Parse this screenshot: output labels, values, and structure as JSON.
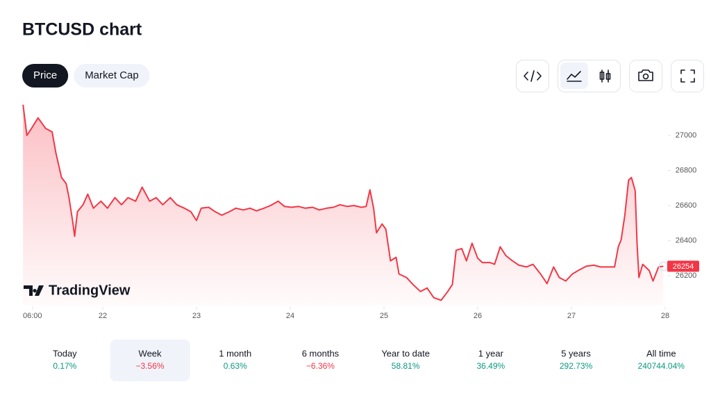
{
  "header": {
    "title": "BTCUSD chart"
  },
  "tabs": [
    "Price",
    "Market Cap"
  ],
  "active_tab": 0,
  "watermark": "TradingView",
  "chart_data": {
    "type": "line",
    "color": "#f23645",
    "x": [
      21.15,
      21.19,
      21.24,
      21.31,
      21.39,
      21.46,
      21.5,
      21.56,
      21.61,
      21.64,
      21.68,
      21.7,
      21.73,
      21.79,
      21.84,
      21.9,
      21.98,
      22.05,
      22.13,
      22.2,
      22.27,
      22.35,
      22.42,
      22.5,
      22.57,
      22.64,
      22.72,
      22.79,
      22.87,
      22.94,
      23.0,
      23.05,
      23.13,
      23.2,
      23.27,
      23.35,
      23.42,
      23.5,
      23.57,
      23.64,
      23.72,
      23.79,
      23.87,
      23.94,
      24.01,
      24.09,
      24.16,
      24.24,
      24.31,
      24.39,
      24.46,
      24.53,
      24.61,
      24.68,
      24.76,
      24.81,
      24.85,
      24.89,
      24.92,
      24.98,
      25.02,
      25.07,
      25.13,
      25.16,
      25.24,
      25.31,
      25.39,
      25.46,
      25.53,
      25.61,
      25.68,
      25.73,
      25.77,
      25.83,
      25.88,
      25.94,
      26.0,
      26.05,
      26.13,
      26.18,
      26.24,
      26.3,
      26.37,
      26.44,
      26.52,
      26.59,
      26.67,
      26.74,
      26.81,
      26.87,
      26.94,
      27.01,
      27.09,
      27.16,
      27.24,
      27.31,
      27.39,
      27.46,
      27.5,
      27.53,
      27.57,
      27.61,
      27.64,
      27.68,
      27.7,
      27.72,
      27.76,
      27.83,
      27.87,
      27.93,
      27.98
    ],
    "values": [
      27175,
      27000,
      27040,
      27100,
      27040,
      27020,
      26900,
      26760,
      26725,
      26645,
      26505,
      26425,
      26565,
      26605,
      26665,
      26585,
      26625,
      26585,
      26645,
      26605,
      26645,
      26625,
      26705,
      26625,
      26645,
      26605,
      26645,
      26605,
      26585,
      26565,
      26515,
      26585,
      26590,
      26565,
      26545,
      26565,
      26585,
      26575,
      26585,
      26570,
      26585,
      26600,
      26625,
      26595,
      26590,
      26595,
      26585,
      26590,
      26575,
      26585,
      26590,
      26605,
      26595,
      26600,
      26590,
      26595,
      26690,
      26585,
      26445,
      26495,
      26465,
      26285,
      26305,
      26210,
      26190,
      26150,
      26110,
      26130,
      26075,
      26060,
      26110,
      26150,
      26345,
      26355,
      26285,
      26385,
      26300,
      26275,
      26275,
      26265,
      26365,
      26315,
      26285,
      26260,
      26250,
      26265,
      26210,
      26155,
      26250,
      26190,
      26170,
      26210,
      26235,
      26255,
      26260,
      26250,
      26250,
      26250,
      26365,
      26405,
      26545,
      26745,
      26760,
      26685,
      26385,
      26190,
      26265,
      26230,
      26170,
      26250,
      26254
    ],
    "xlim": [
      21.14,
      28.05
    ],
    "xticks": [
      {
        "value": 21.25,
        "label": "06:00"
      },
      22,
      23,
      24,
      25,
      26,
      27,
      28
    ],
    "ylim": [
      26030,
      27180
    ],
    "yticks": [
      26200,
      26400,
      26600,
      26800,
      27000
    ]
  },
  "periods": [
    {
      "label": "Today",
      "change": "0.17%"
    },
    {
      "label": "Week",
      "change": "−3.56%"
    },
    {
      "label": "1 month",
      "change": "0.63%"
    },
    {
      "label": "6 months",
      "change": "−6.36%"
    },
    {
      "label": "Year to date",
      "change": "58.81%"
    },
    {
      "label": "1 year",
      "change": "36.49%"
    },
    {
      "label": "5 years",
      "change": "292.73%"
    },
    {
      "label": "All time",
      "change": "240744.04%"
    }
  ],
  "selected_period": 1
}
